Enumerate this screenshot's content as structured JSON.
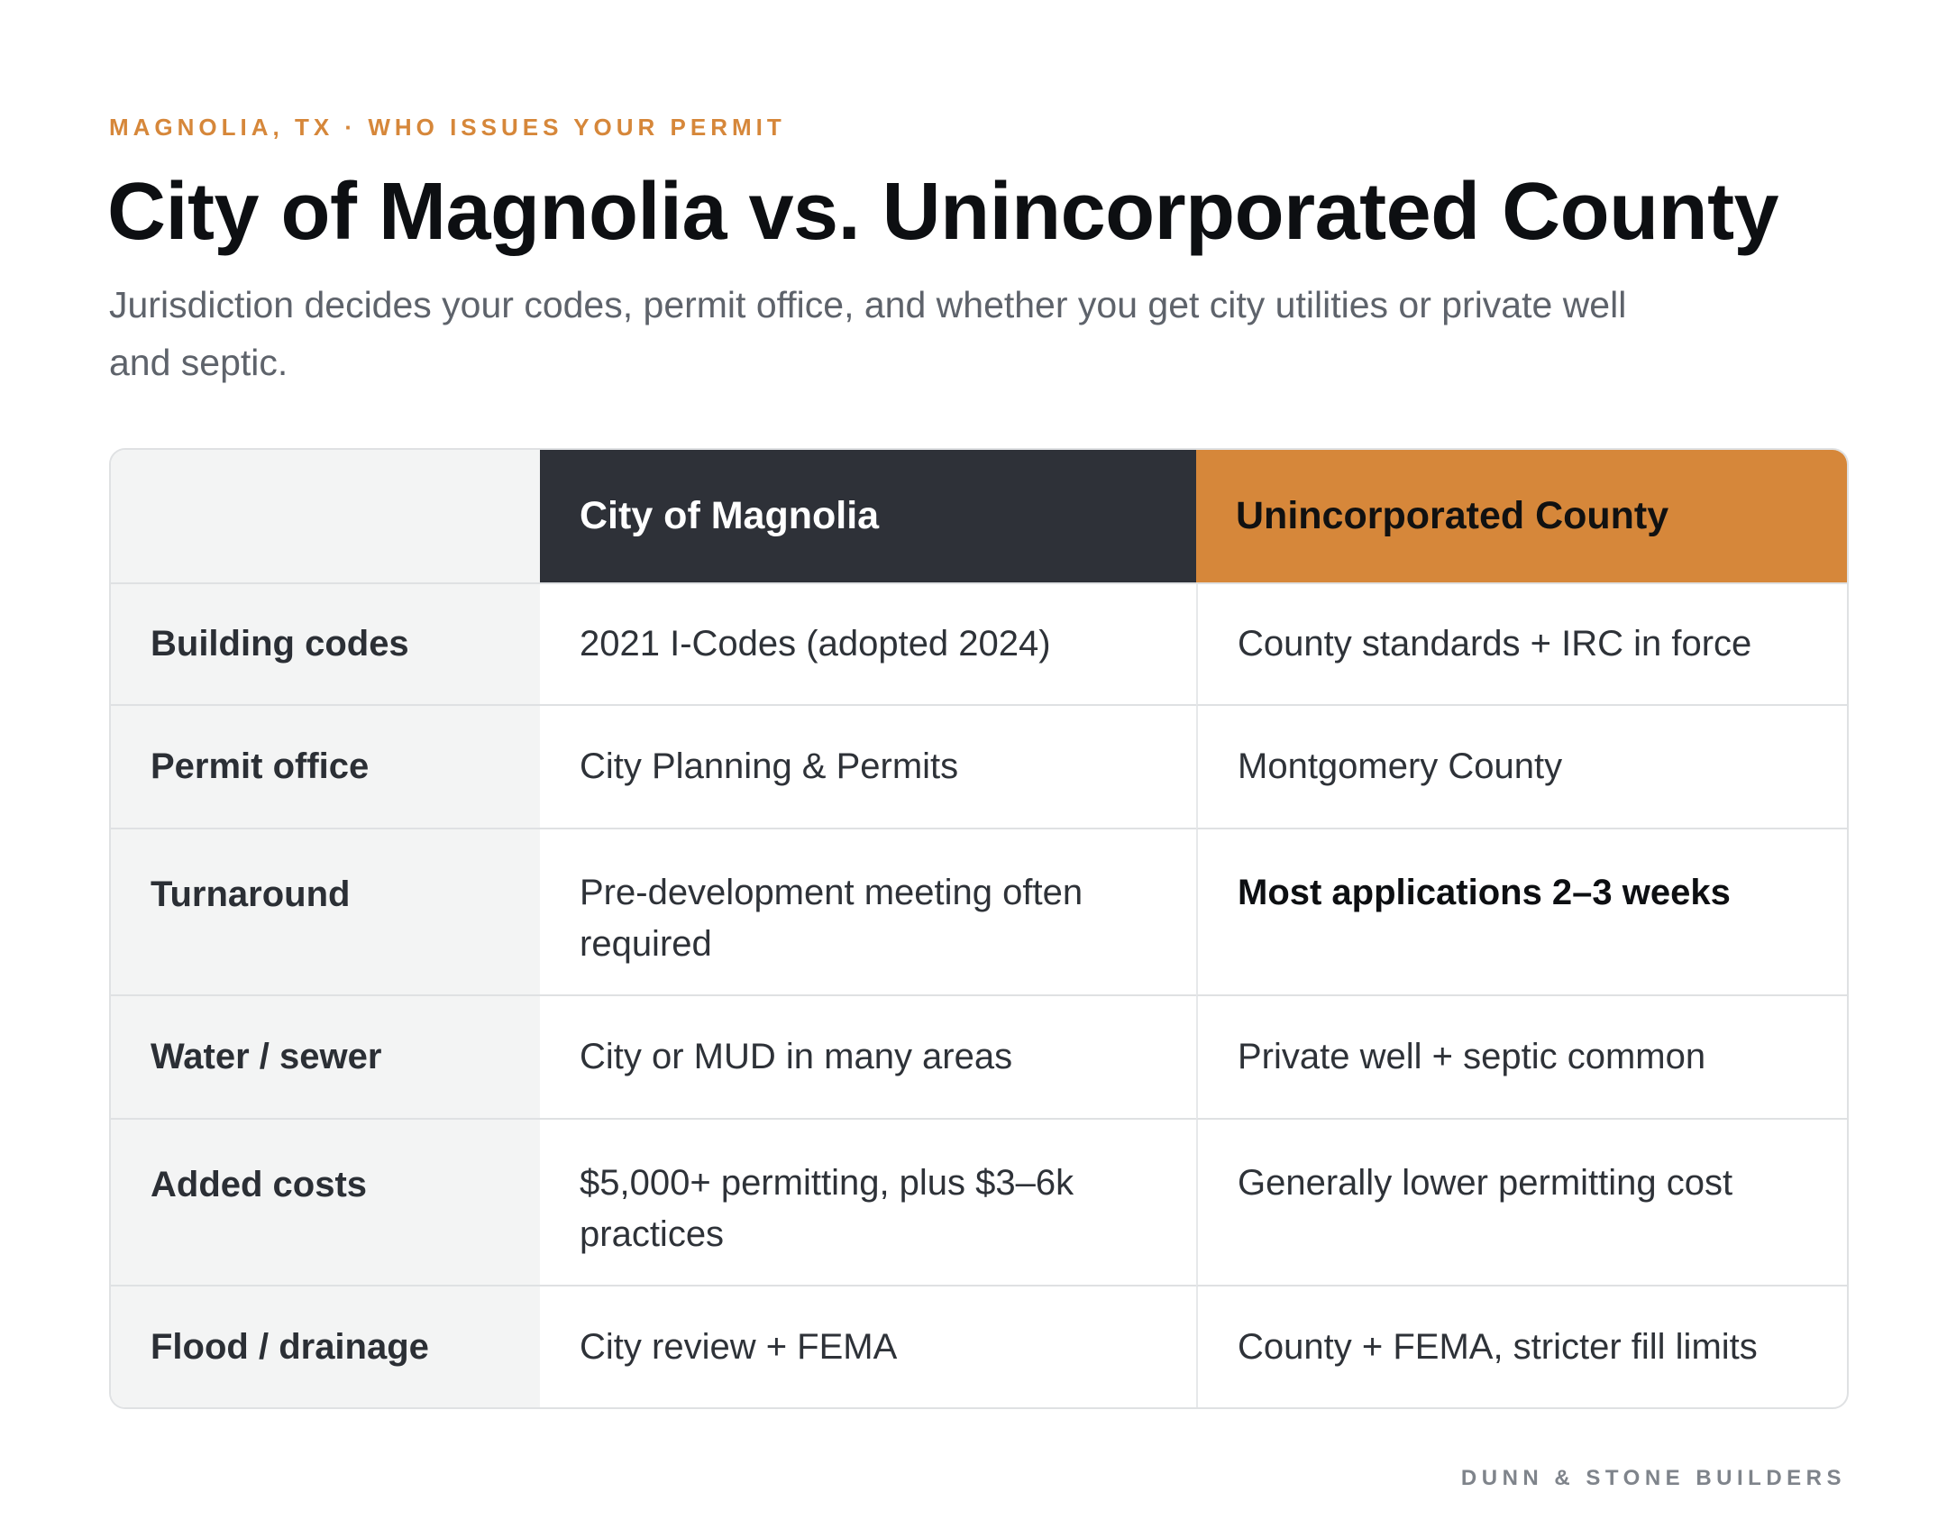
{
  "header": {
    "eyebrow": "MAGNOLIA, TX · WHO ISSUES YOUR PERMIT",
    "title": "City of Magnolia vs. Unincorporated County",
    "subtitle": "Jurisdiction decides your codes, permit office, and whether you get city utilities or private well and septic."
  },
  "table": {
    "columns": [
      "",
      "City of Magnolia",
      "Unincorporated County"
    ],
    "rows": [
      {
        "label": "Building codes",
        "city": "2021 I-Codes (adopted 2024)",
        "county": "County standards + IRC in force"
      },
      {
        "label": "Permit office",
        "city": "City Planning & Permits",
        "county": "Montgomery County"
      },
      {
        "label": "Turnaround",
        "city": "Pre-development meeting often required",
        "county": "Most applications 2–3 weeks"
      },
      {
        "label": "Water / sewer",
        "city": "City or MUD in many areas",
        "county": "Private well + septic common"
      },
      {
        "label": "Added costs",
        "city": "$5,000+ permitting, plus $3–6k practices",
        "county": "Generally lower permitting cost"
      },
      {
        "label": "Flood / drainage",
        "city": "City review + FEMA",
        "county": "County + FEMA, stricter fill limits"
      }
    ]
  },
  "footer": {
    "brand": "DUNN & STONE BUILDERS"
  },
  "colors": {
    "accent": "#d6873a",
    "dark": "#2e3138",
    "label_bg": "#f3f4f4"
  }
}
